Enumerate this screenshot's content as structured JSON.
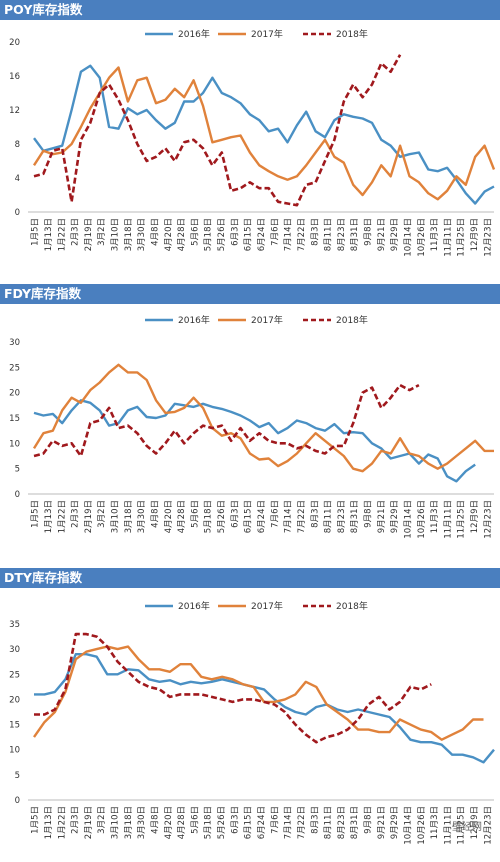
{
  "chart_data": [
    {
      "type": "line",
      "title": "POY库存指数",
      "ylim": [
        0,
        20
      ],
      "yticks": [
        0,
        4,
        8,
        12,
        16,
        20
      ],
      "x_tick_labels": [
        "1月5日",
        "1月13日",
        "1月22日",
        "2月3日",
        "2月19日",
        "3月2日",
        "3月10日",
        "3月18日",
        "3月30日",
        "4月8日",
        "4月20日",
        "4月28日",
        "5月6日",
        "5月18日",
        "5月26日",
        "6月3日",
        "6月15日",
        "6月24日",
        "7月6日",
        "7月14日",
        "7月22日",
        "8月3日",
        "8月11日",
        "8月23日",
        "8月31日",
        "9月8日",
        "9月21日",
        "9月29日",
        "10月14日",
        "10月26日",
        "11月3日",
        "11月11日",
        "11月25日",
        "12月9日",
        "12月23日"
      ],
      "legend_position": "top",
      "grid": false,
      "series": [
        {
          "name": "2016年",
          "color": "#4a90c4",
          "dash": false,
          "values": [
            8.7,
            7.2,
            7.5,
            7.8,
            12.0,
            16.5,
            17.2,
            15.8,
            10.0,
            9.8,
            12.2,
            11.5,
            12.0,
            10.8,
            9.8,
            10.5,
            13.0,
            13.0,
            14.0,
            15.8,
            14.0,
            13.5,
            12.8,
            11.5,
            10.8,
            9.5,
            9.8,
            8.2,
            10.2,
            11.8,
            9.5,
            8.8,
            10.8,
            11.5,
            11.2,
            11.0,
            10.5,
            8.5,
            7.8,
            6.5,
            6.8,
            7.0,
            5.0,
            4.8,
            5.2,
            3.8,
            2.2,
            1.0,
            2.4,
            3.0
          ]
        },
        {
          "name": "2017年",
          "color": "#e0823b",
          "dash": false,
          "values": [
            5.5,
            7.2,
            6.8,
            7.0,
            8.0,
            10.0,
            12.2,
            14.0,
            15.8,
            17.0,
            13.0,
            15.5,
            15.8,
            12.8,
            13.2,
            14.5,
            13.5,
            15.5,
            12.5,
            8.2,
            8.5,
            8.8,
            9.0,
            7.0,
            5.5,
            4.8,
            4.2,
            3.8,
            4.2,
            5.5,
            7.0,
            8.5,
            6.5,
            5.8,
            3.2,
            2.0,
            3.5,
            5.5,
            4.2,
            7.8,
            4.2,
            3.5,
            2.2,
            1.5,
            2.5,
            4.2,
            3.2,
            6.5,
            7.8,
            5.0
          ]
        },
        {
          "name": "2018年",
          "color": "#a0191d",
          "dash": true,
          "values": [
            4.2,
            4.5,
            7.2,
            7.5,
            1.2,
            8.5,
            10.5,
            14.0,
            15.0,
            13.2,
            10.8,
            8.0,
            6.0,
            6.5,
            7.5,
            6.0,
            8.2,
            8.5,
            7.5,
            5.5,
            7.0,
            2.5,
            2.8,
            3.5,
            2.8,
            2.8,
            1.2,
            1.0,
            0.8,
            3.2,
            3.5,
            6.0,
            8.5,
            13.0,
            15.0,
            13.5,
            15.0,
            17.5,
            16.5,
            18.5
          ]
        }
      ]
    },
    {
      "type": "line",
      "title": "FDY库存指数",
      "ylim": [
        0,
        30
      ],
      "yticks": [
        0,
        5,
        10,
        15,
        20,
        25,
        30
      ],
      "x_tick_labels": [
        "1月5日",
        "1月13日",
        "1月22日",
        "2月3日",
        "2月19日",
        "3月2日",
        "3月10日",
        "3月18日",
        "3月30日",
        "4月8日",
        "4月20日",
        "4月28日",
        "5月6日",
        "5月18日",
        "5月26日",
        "6月3日",
        "6月15日",
        "6月24日",
        "7月6日",
        "7月14日",
        "7月22日",
        "8月3日",
        "8月11日",
        "8月23日",
        "8月31日",
        "9月8日",
        "9月21日",
        "9月29日",
        "10月14日",
        "10月26日",
        "11月3日",
        "11月11日",
        "11月25日",
        "12月9日",
        "12月23日"
      ],
      "legend_position": "top",
      "grid": false,
      "series": [
        {
          "name": "2016年",
          "color": "#4a90c4",
          "dash": false,
          "values": [
            16.0,
            15.5,
            15.8,
            14.0,
            16.5,
            18.5,
            18.0,
            16.5,
            13.5,
            14.0,
            16.5,
            17.2,
            15.2,
            15.0,
            15.5,
            17.8,
            17.5,
            17.2,
            17.8,
            17.2,
            16.8,
            16.2,
            15.5,
            14.5,
            13.2,
            14.0,
            12.0,
            13.0,
            14.5,
            14.0,
            13.0,
            12.5,
            13.8,
            12.0,
            12.2,
            12.0,
            10.0,
            9.0,
            7.0,
            7.5,
            8.0,
            6.0,
            7.8,
            7.0,
            3.5,
            2.5,
            4.5,
            5.8
          ]
        },
        {
          "name": "2017年",
          "color": "#e0823b",
          "dash": false,
          "values": [
            9.0,
            12.0,
            12.5,
            16.5,
            19.0,
            18.0,
            20.5,
            22.0,
            24.0,
            25.5,
            24.0,
            24.0,
            22.5,
            18.5,
            16.0,
            16.2,
            17.0,
            19.0,
            17.0,
            13.0,
            11.5,
            12.0,
            11.0,
            8.0,
            6.8,
            7.0,
            5.5,
            6.5,
            8.0,
            10.0,
            12.0,
            10.5,
            9.0,
            7.5,
            5.0,
            4.5,
            6.0,
            8.5,
            8.0,
            11.0,
            8.0,
            7.5,
            6.0,
            5.0,
            6.0,
            7.5,
            9.0,
            10.5,
            8.5,
            8.5
          ]
        },
        {
          "name": "2018年",
          "color": "#a0191d",
          "dash": true,
          "values": [
            7.5,
            8.0,
            10.5,
            9.5,
            10.0,
            7.5,
            14.0,
            14.5,
            17.0,
            13.0,
            13.5,
            12.0,
            9.5,
            8.0,
            10.0,
            12.5,
            10.0,
            12.0,
            13.5,
            13.0,
            13.5,
            10.5,
            13.0,
            10.5,
            12.0,
            10.5,
            10.0,
            10.0,
            9.0,
            9.5,
            8.5,
            8.0,
            9.5,
            9.5,
            14.0,
            20.0,
            21.0,
            17.0,
            19.0,
            21.5,
            20.5,
            21.5
          ]
        }
      ]
    },
    {
      "type": "line",
      "title": "DTY库存指数",
      "ylim": [
        0,
        35
      ],
      "yticks": [
        0,
        5,
        10,
        15,
        20,
        25,
        30,
        35
      ],
      "x_tick_labels": [
        "1月5日",
        "1月13日",
        "1月22日",
        "2月3日",
        "2月19日",
        "3月2日",
        "3月10日",
        "3月18日",
        "3月30日",
        "4月8日",
        "4月20日",
        "4月28日",
        "5月6日",
        "5月18日",
        "5月26日",
        "6月3日",
        "6月15日",
        "6月24日",
        "7月6日",
        "7月14日",
        "7月22日",
        "8月3日",
        "8月11日",
        "8月23日",
        "8月31日",
        "9月8日",
        "9月21日",
        "9月29日",
        "10月14日",
        "10月26日",
        "11月3日",
        "11月11日",
        "11月25日",
        "12月9日",
        "12月23日"
      ],
      "legend_position": "top",
      "grid": false,
      "series": [
        {
          "name": "2016年",
          "color": "#4a90c4",
          "dash": false,
          "values": [
            21.0,
            21.0,
            21.5,
            24.0,
            29.0,
            29.0,
            28.5,
            25.0,
            25.0,
            26.0,
            25.8,
            24.0,
            23.5,
            23.8,
            23.0,
            23.5,
            23.2,
            23.5,
            24.0,
            23.5,
            23.0,
            22.5,
            22.0,
            20.0,
            18.5,
            17.5,
            17.0,
            18.5,
            19.0,
            18.0,
            17.5,
            18.0,
            17.5,
            17.0,
            16.5,
            14.5,
            12.0,
            11.5,
            11.5,
            11.0,
            9.0,
            9.0,
            8.5,
            7.5,
            10.0
          ]
        },
        {
          "name": "2017年",
          "color": "#e0823b",
          "dash": false,
          "values": [
            12.5,
            15.5,
            17.5,
            21.5,
            28.0,
            29.5,
            30.0,
            30.5,
            30.0,
            30.5,
            28.0,
            26.0,
            26.0,
            25.5,
            27.0,
            27.0,
            24.5,
            24.0,
            24.5,
            24.0,
            23.0,
            22.5,
            19.5,
            19.5,
            20.0,
            21.0,
            23.5,
            22.5,
            19.0,
            17.5,
            16.0,
            14.0,
            14.0,
            13.5,
            13.5,
            16.0,
            15.0,
            14.0,
            13.5,
            12.0,
            13.0,
            14.0,
            16.0,
            16.0
          ]
        },
        {
          "name": "2018年",
          "color": "#a0191d",
          "dash": true,
          "values": [
            17.0,
            17.0,
            18.0,
            22.0,
            33.0,
            33.0,
            32.5,
            30.5,
            27.5,
            25.5,
            23.5,
            22.5,
            22.0,
            20.5,
            21.0,
            21.0,
            21.0,
            20.5,
            20.0,
            19.5,
            20.0,
            20.0,
            19.5,
            19.0,
            17.5,
            15.0,
            13.0,
            11.5,
            12.5,
            13.0,
            14.0,
            16.0,
            19.0,
            20.5,
            18.0,
            19.5,
            22.5,
            22.0,
            23.0
          ]
        }
      ]
    }
  ],
  "watermark": "壁经网"
}
